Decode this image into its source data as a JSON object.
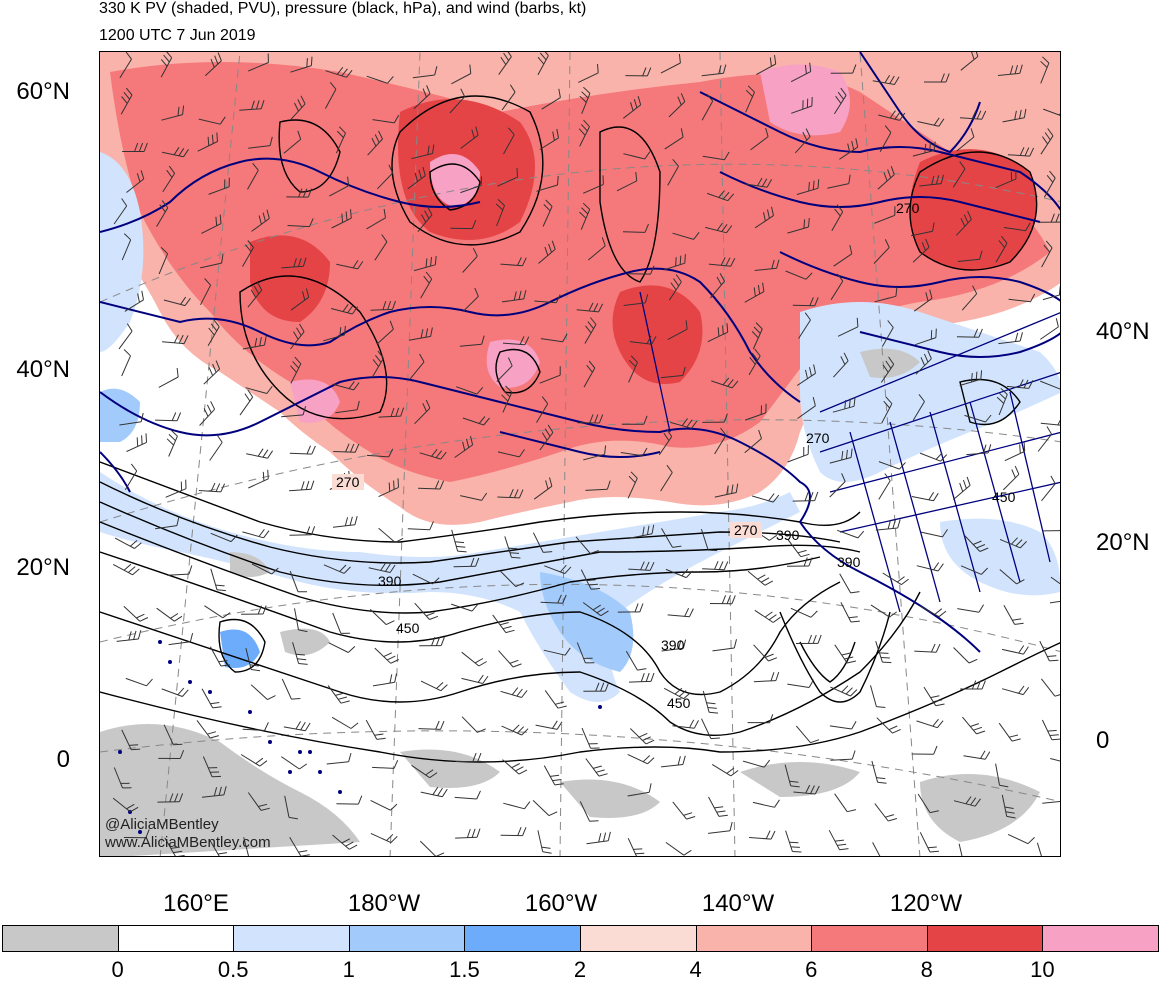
{
  "title": "330 K PV (shaded, PVU), pressure (black, hPa), and wind (barbs, kt)",
  "subtitle": "1200 UTC 7 Jun 2019",
  "lat_labels_left": [
    {
      "text": "60°N",
      "lat": 60
    },
    {
      "text": "40°N",
      "lat": 40
    },
    {
      "text": "20°N",
      "lat": 20
    },
    {
      "text": "0",
      "lat": 0
    }
  ],
  "lat_labels_right": [
    {
      "text": "40°N",
      "lat": 40
    },
    {
      "text": "20°N",
      "lat": 20
    },
    {
      "text": "0",
      "lat": 0
    }
  ],
  "lon_labels": [
    "160°E",
    "180°W",
    "160°W",
    "140°W",
    "120°W"
  ],
  "pressure_contour_labels": [
    "270",
    "270",
    "270",
    "270",
    "390",
    "390",
    "390",
    "390",
    "450",
    "450",
    "450"
  ],
  "credit_lines": [
    "@AliciaMBentley",
    "www.AliciaMBentley.com"
  ],
  "colorbar": {
    "levels": [
      "0",
      "0.5",
      "1",
      "1.5",
      "2",
      "4",
      "6",
      "8",
      "10"
    ],
    "colors": [
      "#c8c8c8",
      "#ffffff",
      "#d2e4fd",
      "#a2cbfc",
      "#6cacfb",
      "#fbdcd4",
      "#f9b3ab",
      "#f5787a",
      "#e54447",
      "#f7a1c5"
    ]
  },
  "colors": {
    "coastline": "#00007f",
    "contour": "#000000",
    "graticule": "#888888"
  }
}
